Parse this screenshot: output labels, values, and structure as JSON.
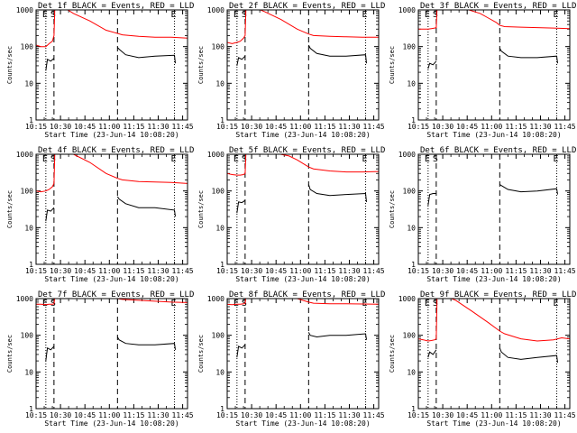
{
  "figure": {
    "ylabel": "Counts/sec",
    "xlabel": "Start Time (23-Jun-14 10:08:20)",
    "x_tick_labels": [
      "10:15",
      "10:30",
      "10:45",
      "11:00",
      "11:15",
      "11:30",
      "11:45"
    ],
    "y_tick_labels": [
      "1",
      "10",
      "100",
      "1000"
    ],
    "series_colors": {
      "events": "#000000",
      "lld": "#ff0000"
    }
  },
  "chart_data": [
    {
      "type": "line",
      "title": "Det 1f BLACK = Events, RED = LLD",
      "markers": [
        "E",
        "S",
        "E"
      ],
      "xlim_min": [
        7,
        100
      ],
      "ylim": [
        1,
        1000
      ],
      "yscale": "log",
      "dashed_lines_min": [
        18,
        57
      ],
      "dotted_lines_min": [
        13,
        92
      ],
      "series": [
        {
          "color": "red",
          "x": [
            7,
            10,
            13,
            15,
            17,
            18,
            18.5,
            20,
            25,
            30,
            40,
            50,
            57,
            60,
            70,
            80,
            90,
            100
          ],
          "values": [
            110,
            100,
            100,
            120,
            140,
            200,
            1100,
            1100,
            1100,
            800,
            500,
            280,
            230,
            210,
            190,
            180,
            180,
            170
          ]
        },
        {
          "color": "black",
          "segments": [
            {
              "x": [
                13,
                14,
                16,
                18
              ],
              "values": [
                22,
                45,
                40,
                48
              ]
            },
            {
              "x": [
                57,
                58,
                62,
                70,
                80,
                92,
                92.5
              ],
              "values": [
                95,
                85,
                60,
                50,
                55,
                58,
                35
              ]
            }
          ]
        }
      ]
    },
    {
      "type": "line",
      "title": "Det 2f BLACK = Events, RED = LLD",
      "markers": [
        "E",
        "S",
        "E"
      ],
      "xlim_min": [
        7,
        100
      ],
      "ylim": [
        1,
        1000
      ],
      "yscale": "log",
      "dashed_lines_min": [
        18,
        57
      ],
      "dotted_lines_min": [
        13,
        92
      ],
      "series": [
        {
          "color": "red",
          "x": [
            7,
            10,
            13,
            15,
            17,
            18,
            18.5,
            20,
            25,
            30,
            40,
            50,
            57,
            60,
            70,
            80,
            90,
            100
          ],
          "values": [
            130,
            120,
            130,
            140,
            170,
            200,
            1100,
            1100,
            1100,
            900,
            550,
            300,
            220,
            200,
            190,
            185,
            180,
            180
          ]
        },
        {
          "color": "black",
          "segments": [
            {
              "x": [
                13,
                14,
                16,
                18
              ],
              "values": [
                30,
                50,
                45,
                55
              ]
            },
            {
              "x": [
                57,
                58,
                62,
                70,
                80,
                92,
                92.5
              ],
              "values": [
                110,
                90,
                65,
                55,
                55,
                60,
                35
              ]
            }
          ]
        }
      ]
    },
    {
      "type": "line",
      "title": "Det 3f BLACK = Events, RED = LLD",
      "markers": [
        "E",
        "S",
        "E"
      ],
      "xlim_min": [
        7,
        100
      ],
      "ylim": [
        1,
        1000
      ],
      "yscale": "log",
      "dashed_lines_min": [
        18,
        57
      ],
      "dotted_lines_min": [
        13,
        92
      ],
      "series": [
        {
          "color": "red",
          "x": [
            7,
            10,
            13,
            15,
            17,
            18,
            18.5,
            25,
            35,
            45,
            50,
            55,
            57,
            60,
            70,
            80,
            90,
            100
          ],
          "values": [
            300,
            300,
            300,
            310,
            320,
            330,
            1100,
            1100,
            1100,
            800,
            600,
            450,
            380,
            350,
            340,
            330,
            320,
            310
          ]
        },
        {
          "color": "black",
          "segments": [
            {
              "x": [
                13,
                14,
                16,
                18
              ],
              "values": [
                25,
                35,
                32,
                40
              ]
            },
            {
              "x": [
                57,
                58,
                62,
                70,
                80,
                92,
                92.5
              ],
              "values": [
                90,
                75,
                55,
                50,
                50,
                55,
                35
              ]
            }
          ]
        }
      ]
    },
    {
      "type": "line",
      "title": "Det 4f BLACK = Events, RED = LLD",
      "markers": [
        "E",
        "S",
        "E"
      ],
      "xlim_min": [
        7,
        100
      ],
      "ylim": [
        1,
        1000
      ],
      "yscale": "log",
      "dashed_lines_min": [
        18,
        57
      ],
      "dotted_lines_min": [
        13,
        92
      ],
      "series": [
        {
          "color": "red",
          "x": [
            7,
            10,
            13,
            15,
            17,
            18,
            18.5,
            25,
            30,
            40,
            50,
            57,
            60,
            70,
            80,
            90,
            100
          ],
          "values": [
            100,
            95,
            100,
            110,
            130,
            160,
            1100,
            1100,
            1000,
            600,
            300,
            220,
            200,
            180,
            175,
            170,
            160
          ]
        },
        {
          "color": "black",
          "segments": [
            {
              "x": [
                13,
                14,
                16,
                18
              ],
              "values": [
                15,
                30,
                28,
                35
              ]
            },
            {
              "x": [
                57,
                58,
                62,
                70,
                80,
                92,
                92.5
              ],
              "values": [
                70,
                60,
                45,
                35,
                35,
                30,
                20
              ]
            }
          ]
        }
      ]
    },
    {
      "type": "line",
      "title": "Det 5f BLACK = Events, RED = LLD",
      "markers": [
        "E",
        "S",
        "E"
      ],
      "xlim_min": [
        7,
        100
      ],
      "ylim": [
        1,
        1000
      ],
      "yscale": "log",
      "dashed_lines_min": [
        18,
        57
      ],
      "dotted_lines_min": [
        13,
        92
      ],
      "series": [
        {
          "color": "red",
          "x": [
            7,
            10,
            13,
            15,
            17,
            18,
            18.5,
            25,
            35,
            45,
            50,
            57,
            60,
            70,
            80,
            90,
            100
          ],
          "values": [
            300,
            280,
            270,
            270,
            280,
            300,
            1100,
            1100,
            1100,
            900,
            700,
            450,
            400,
            350,
            330,
            330,
            340
          ]
        },
        {
          "color": "black",
          "segments": [
            {
              "x": [
                13,
                14,
                16,
                18
              ],
              "values": [
                25,
                50,
                48,
                55
              ]
            },
            {
              "x": [
                57,
                58,
                62,
                70,
                80,
                92,
                92.5
              ],
              "values": [
                150,
                110,
                85,
                75,
                80,
                85,
                50
              ]
            }
          ]
        }
      ]
    },
    {
      "type": "line",
      "title": "Det 6f BLACK = Events, RED = LLD",
      "markers": [
        "E",
        "S",
        "E"
      ],
      "xlim_min": [
        7,
        100
      ],
      "ylim": [
        1,
        1000
      ],
      "yscale": "log",
      "dashed_lines_min": [
        18,
        57
      ],
      "dotted_lines_min": [
        13,
        92
      ],
      "series": [
        {
          "color": "red",
          "x": [
            7,
            100
          ],
          "values": [
            1100,
            1100
          ]
        },
        {
          "color": "black",
          "segments": [
            {
              "x": [
                13,
                14,
                16,
                18
              ],
              "values": [
                40,
                80,
                85,
                85
              ]
            },
            {
              "x": [
                57,
                58,
                62,
                70,
                80,
                92,
                92.5
              ],
              "values": [
                150,
                140,
                110,
                95,
                100,
                115,
                80
              ]
            }
          ]
        }
      ]
    },
    {
      "type": "line",
      "title": "Det 7f BLACK = Events, RED = LLD",
      "markers": [
        "E",
        "S",
        "E"
      ],
      "xlim_min": [
        7,
        100
      ],
      "ylim": [
        1,
        1000
      ],
      "yscale": "log",
      "dashed_lines_min": [
        18,
        57
      ],
      "dotted_lines_min": [
        13,
        92
      ],
      "series": [
        {
          "color": "red",
          "x": [
            7,
            10,
            13,
            15,
            17,
            18,
            18.5,
            25,
            35,
            45,
            50,
            57,
            60,
            70,
            80,
            90,
            100
          ],
          "values": [
            700,
            700,
            680,
            700,
            700,
            720,
            1100,
            1100,
            1100,
            1100,
            1100,
            1000,
            950,
            900,
            850,
            800,
            780
          ]
        },
        {
          "color": "black",
          "segments": [
            {
              "x": [
                13,
                14,
                16,
                18
              ],
              "values": [
                20,
                45,
                40,
                50
              ]
            },
            {
              "x": [
                57,
                58,
                62,
                70,
                80,
                92,
                92.5
              ],
              "values": [
                90,
                75,
                60,
                55,
                55,
                60,
                40
              ]
            }
          ]
        }
      ]
    },
    {
      "type": "line",
      "title": "Det 8f BLACK = Events, RED = LLD",
      "markers": [
        "E",
        "S",
        "E"
      ],
      "xlim_min": [
        7,
        100
      ],
      "ylim": [
        1,
        1000
      ],
      "yscale": "log",
      "dashed_lines_min": [
        18,
        57
      ],
      "dotted_lines_min": [
        13,
        92
      ],
      "series": [
        {
          "color": "red",
          "x": [
            7,
            10,
            13,
            15,
            17,
            18,
            18.5,
            25,
            35,
            45,
            50,
            57,
            60,
            70,
            80,
            90,
            100
          ],
          "values": [
            700,
            680,
            700,
            700,
            720,
            730,
            1100,
            1100,
            1100,
            1100,
            1000,
            800,
            750,
            720,
            720,
            710,
            700
          ]
        },
        {
          "color": "black",
          "segments": [
            {
              "x": [
                13,
                14,
                16,
                18
              ],
              "values": [
                25,
                50,
                45,
                55
              ]
            },
            {
              "x": [
                57,
                58,
                62,
                70,
                80,
                92,
                92.5
              ],
              "values": [
                120,
                100,
                90,
                100,
                100,
                110,
                75
              ]
            }
          ]
        }
      ]
    },
    {
      "type": "line",
      "title": "Det 9f BLACK = Events, RED = LLD",
      "markers": [
        "E",
        "S",
        "E"
      ],
      "xlim_min": [
        7,
        100
      ],
      "ylim": [
        1,
        1000
      ],
      "yscale": "log",
      "dashed_lines_min": [
        18,
        57
      ],
      "dotted_lines_min": [
        13,
        92
      ],
      "series": [
        {
          "color": "red",
          "x": [
            7,
            10,
            13,
            15,
            17,
            18,
            18.5,
            25,
            30,
            40,
            50,
            57,
            60,
            70,
            80,
            90,
            95,
            100
          ],
          "values": [
            80,
            75,
            70,
            72,
            75,
            80,
            1100,
            1100,
            900,
            450,
            220,
            130,
            110,
            80,
            70,
            75,
            85,
            80
          ]
        },
        {
          "color": "black",
          "segments": [
            {
              "x": [
                13,
                14,
                16,
                18
              ],
              "values": [
                25,
                35,
                30,
                40
              ]
            },
            {
              "x": [
                57,
                58,
                62,
                70,
                80,
                92,
                92.5
              ],
              "values": [
                45,
                35,
                25,
                22,
                25,
                28,
                18
              ]
            }
          ]
        }
      ]
    }
  ]
}
